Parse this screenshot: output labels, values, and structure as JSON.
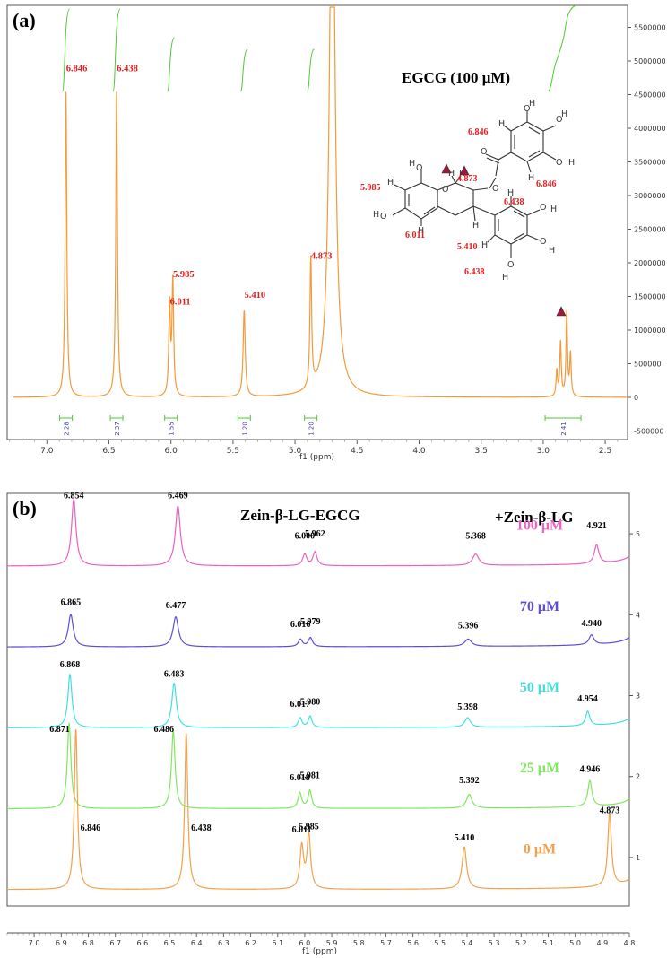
{
  "chart_data": [
    {
      "type": "line",
      "panel_label": "(a)",
      "annotation_title": "EGCG (100 μM)",
      "xlabel": "f1 (ppm)",
      "xlim": [
        7.32,
        2.32
      ],
      "ylim": [
        -600000,
        5800000
      ],
      "x_ticks": [
        "7.0",
        "6.5",
        "6.0",
        "5.5",
        "5.0",
        "4.5",
        "4.0",
        "3.5",
        "3.0",
        "2.5"
      ],
      "x_tick_values": [
        7.0,
        6.5,
        6.0,
        5.5,
        5.0,
        4.5,
        4.0,
        3.5,
        3.0,
        2.5
      ],
      "y_ticks": [
        "5500000",
        "5000000",
        "4500000",
        "4000000",
        "3500000",
        "3000000",
        "2500000",
        "2000000",
        "1500000",
        "1000000",
        "500000",
        "0",
        "-500000"
      ],
      "y_tick_values": [
        5500000,
        5000000,
        4500000,
        4000000,
        3500000,
        3000000,
        2500000,
        2000000,
        1500000,
        1000000,
        500000,
        0,
        -500000
      ],
      "series": [
        {
          "color": "#F39A3A",
          "peaks": [
            {
              "x": 6.846,
              "y": 4550000,
              "w": 0.008
            },
            {
              "x": 6.438,
              "y": 4550000,
              "w": 0.008
            },
            {
              "x": 6.011,
              "y": 1350000,
              "w": 0.008
            },
            {
              "x": 5.985,
              "y": 1700000,
              "w": 0.008
            },
            {
              "x": 5.41,
              "y": 1280000,
              "w": 0.01
            },
            {
              "x": 4.873,
              "y": 1930000,
              "w": 0.008
            },
            {
              "x": 4.7,
              "y": 9000000,
              "w": 0.025
            },
            {
              "x": 2.89,
              "y": 380000,
              "w": 0.007
            },
            {
              "x": 2.86,
              "y": 800000,
              "w": 0.007
            },
            {
              "x": 2.81,
              "y": 1250000,
              "w": 0.007
            },
            {
              "x": 2.78,
              "y": 620000,
              "w": 0.007
            }
          ]
        }
      ],
      "peak_labels": [
        {
          "text": "6.846",
          "x": 6.846,
          "y": 4850000
        },
        {
          "text": "6.438",
          "x": 6.438,
          "y": 4850000
        },
        {
          "text": "6.011",
          "x": 6.011,
          "y": 1380000
        },
        {
          "text": "5.985",
          "x": 5.985,
          "y": 1790000
        },
        {
          "text": "5.410",
          "x": 5.41,
          "y": 1480000
        },
        {
          "text": "4.873",
          "x": 4.873,
          "y": 2060000
        }
      ],
      "integrals": [
        {
          "label": "2.28",
          "x": 6.846
        },
        {
          "label": "2.37",
          "x": 6.438
        },
        {
          "label": "1.55",
          "x": 6.0
        },
        {
          "label": "1.20",
          "x": 5.41
        },
        {
          "label": "1.20",
          "x": 4.873
        },
        {
          "label": "2.41",
          "x": 2.84
        }
      ],
      "structure_labels": [
        {
          "text": "6.846"
        },
        {
          "text": "6.846"
        },
        {
          "text": "5.985"
        },
        {
          "text": "4.873"
        },
        {
          "text": "6.438"
        },
        {
          "text": "5.410"
        },
        {
          "text": "6.011"
        },
        {
          "text": "6.438"
        }
      ],
      "atom_labels": [
        "O",
        "H",
        "O",
        "H",
        "O",
        "O",
        "H",
        "O",
        "O",
        "H",
        "H",
        "H",
        "H",
        "H",
        "H",
        "H",
        "O",
        "O",
        "H",
        "H",
        "H",
        "H",
        "O",
        "O",
        "H",
        "H"
      ],
      "marker_color": "#A0183C",
      "label_color": "#E02020",
      "integral_color": "#4DCB2F"
    },
    {
      "type": "line",
      "panel_label": "(b)",
      "title": "Zein-β-LG-EGCG",
      "title_right": "+Zein-β-LG",
      "xlabel": "f1 (ppm)",
      "xlim": [
        7.1,
        4.8
      ],
      "ylim": [
        0.4,
        5.5
      ],
      "x_ticks": [
        "7.0",
        "6.9",
        "6.8",
        "6.7",
        "6.6",
        "6.5",
        "6.4",
        "6.3",
        "6.2",
        "6.1",
        "6.0",
        "5.9",
        "5.8",
        "5.7",
        "5.6",
        "5.5",
        "5.4",
        "5.3",
        "5.2",
        "5.1",
        "5.0",
        "4.9",
        "4.8"
      ],
      "x_tick_values": [
        7.0,
        6.9,
        6.8,
        6.7,
        6.6,
        6.5,
        6.4,
        6.3,
        6.2,
        6.1,
        6.0,
        5.9,
        5.8,
        5.7,
        5.6,
        5.5,
        5.4,
        5.3,
        5.2,
        5.1,
        5.0,
        4.9,
        4.8
      ],
      "y_ticks": [
        "5",
        "4",
        "3",
        "2",
        "1"
      ],
      "y_tick_values": [
        5,
        4,
        3,
        2,
        1
      ],
      "series": [
        {
          "name": "100 μM",
          "color": "#F060C0",
          "baseline": 4.6,
          "peaks": [
            {
              "x": 6.854,
              "h": 0.82,
              "w": 0.01
            },
            {
              "x": 6.469,
              "h": 0.74,
              "w": 0.011
            },
            {
              "x": 6.0,
              "h": 0.14,
              "w": 0.009
            },
            {
              "x": 5.962,
              "h": 0.17,
              "w": 0.009
            },
            {
              "x": 5.368,
              "h": 0.14,
              "w": 0.014
            },
            {
              "x": 4.921,
              "h": 0.23,
              "w": 0.01
            }
          ],
          "labels": [
            {
              "text": "6.854",
              "x": 6.854,
              "y": 5.44
            },
            {
              "text": "6.469",
              "x": 6.469,
              "y": 5.44
            },
            {
              "text": "6.000",
              "x": 6.0,
              "y": 4.94
            },
            {
              "text": "5.962",
              "x": 5.962,
              "y": 4.97
            },
            {
              "text": "5.368",
              "x": 5.368,
              "y": 4.94
            },
            {
              "text": "4.921",
              "x": 4.921,
              "y": 5.07
            }
          ]
        },
        {
          "name": "70 μM",
          "color": "#5B4FD8",
          "baseline": 3.6,
          "peaks": [
            {
              "x": 6.865,
              "h": 0.4,
              "w": 0.011
            },
            {
              "x": 6.477,
              "h": 0.37,
              "w": 0.012
            },
            {
              "x": 6.016,
              "h": 0.09,
              "w": 0.009
            },
            {
              "x": 5.979,
              "h": 0.11,
              "w": 0.009
            },
            {
              "x": 5.396,
              "h": 0.09,
              "w": 0.015
            },
            {
              "x": 4.94,
              "h": 0.12,
              "w": 0.011
            }
          ],
          "labels": [
            {
              "text": "6.865",
              "x": 6.865,
              "y": 4.12
            },
            {
              "text": "6.477",
              "x": 6.477,
              "y": 4.08
            },
            {
              "text": "6.016",
              "x": 6.016,
              "y": 3.85
            },
            {
              "text": "5.979",
              "x": 5.979,
              "y": 3.88
            },
            {
              "text": "5.396",
              "x": 5.396,
              "y": 3.83
            },
            {
              "text": "4.940",
              "x": 4.94,
              "y": 3.86
            }
          ]
        },
        {
          "name": "50 μM",
          "color": "#40E0E0",
          "baseline": 2.6,
          "peaks": [
            {
              "x": 6.868,
              "h": 0.66,
              "w": 0.009
            },
            {
              "x": 6.483,
              "h": 0.55,
              "w": 0.01
            },
            {
              "x": 6.017,
              "h": 0.12,
              "w": 0.008
            },
            {
              "x": 5.98,
              "h": 0.14,
              "w": 0.008
            },
            {
              "x": 5.398,
              "h": 0.12,
              "w": 0.012
            },
            {
              "x": 4.954,
              "h": 0.18,
              "w": 0.009
            }
          ],
          "labels": [
            {
              "text": "6.868",
              "x": 6.868,
              "y": 3.35
            },
            {
              "text": "6.483",
              "x": 6.483,
              "y": 3.23
            },
            {
              "text": "6.017",
              "x": 6.017,
              "y": 2.86
            },
            {
              "text": "5.980",
              "x": 5.98,
              "y": 2.89
            },
            {
              "text": "5.398",
              "x": 5.398,
              "y": 2.83
            },
            {
              "text": "4.954",
              "x": 4.954,
              "y": 2.93
            }
          ]
        },
        {
          "name": "25 μM",
          "color": "#7EE860",
          "baseline": 1.6,
          "peaks": [
            {
              "x": 6.871,
              "h": 1.05,
              "w": 0.008
            },
            {
              "x": 6.486,
              "h": 0.96,
              "w": 0.008
            },
            {
              "x": 6.018,
              "h": 0.19,
              "w": 0.008
            },
            {
              "x": 5.981,
              "h": 0.22,
              "w": 0.008
            },
            {
              "x": 5.392,
              "h": 0.17,
              "w": 0.012
            },
            {
              "x": 4.946,
              "h": 0.32,
              "w": 0.009
            }
          ],
          "labels": [
            {
              "text": "6.871",
              "x": 6.906,
              "y": 2.55
            },
            {
              "text": "6.486",
              "x": 6.521,
              "y": 2.55
            },
            {
              "text": "6.018",
              "x": 6.018,
              "y": 1.95
            },
            {
              "text": "5.981",
              "x": 5.981,
              "y": 1.98
            },
            {
              "text": "5.392",
              "x": 5.392,
              "y": 1.92
            },
            {
              "text": "4.946",
              "x": 4.946,
              "y": 2.06
            }
          ]
        },
        {
          "name": "0 μM",
          "color": "#F5A04A",
          "baseline": 0.6,
          "peaks": [
            {
              "x": 6.846,
              "h": 1.98,
              "w": 0.007
            },
            {
              "x": 6.438,
              "h": 1.93,
              "w": 0.007
            },
            {
              "x": 6.011,
              "h": 0.52,
              "w": 0.008
            },
            {
              "x": 5.985,
              "h": 0.67,
              "w": 0.008
            },
            {
              "x": 5.41,
              "h": 0.52,
              "w": 0.01
            },
            {
              "x": 4.873,
              "h": 0.9,
              "w": 0.008
            }
          ],
          "labels": [
            {
              "text": "6.846",
              "x": 6.792,
              "y": 1.33
            },
            {
              "text": "6.438",
              "x": 6.383,
              "y": 1.33
            },
            {
              "text": "6.011",
              "x": 6.011,
              "y": 1.31
            },
            {
              "text": "5.985",
              "x": 5.985,
              "y": 1.35
            },
            {
              "text": "5.410",
              "x": 5.41,
              "y": 1.21
            },
            {
              "text": "4.873",
              "x": 4.873,
              "y": 1.55
            }
          ]
        }
      ]
    }
  ]
}
